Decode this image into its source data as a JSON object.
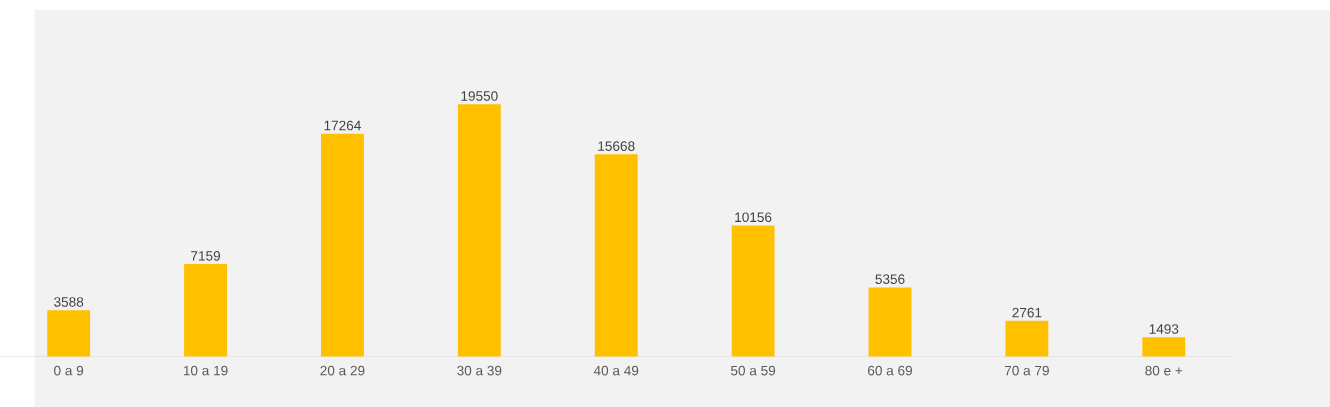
{
  "chart_data": {
    "type": "bar",
    "categories": [
      "0 a 9",
      "10 a 19",
      "20 a 29",
      "30 a 39",
      "40 a 49",
      "50 a 59",
      "60 a 69",
      "70 a 79",
      "80 e +"
    ],
    "values": [
      3588,
      7159,
      17264,
      19550,
      15668,
      10156,
      5356,
      2761,
      1493
    ],
    "color": "#ffc000",
    "data_labels": true
  }
}
